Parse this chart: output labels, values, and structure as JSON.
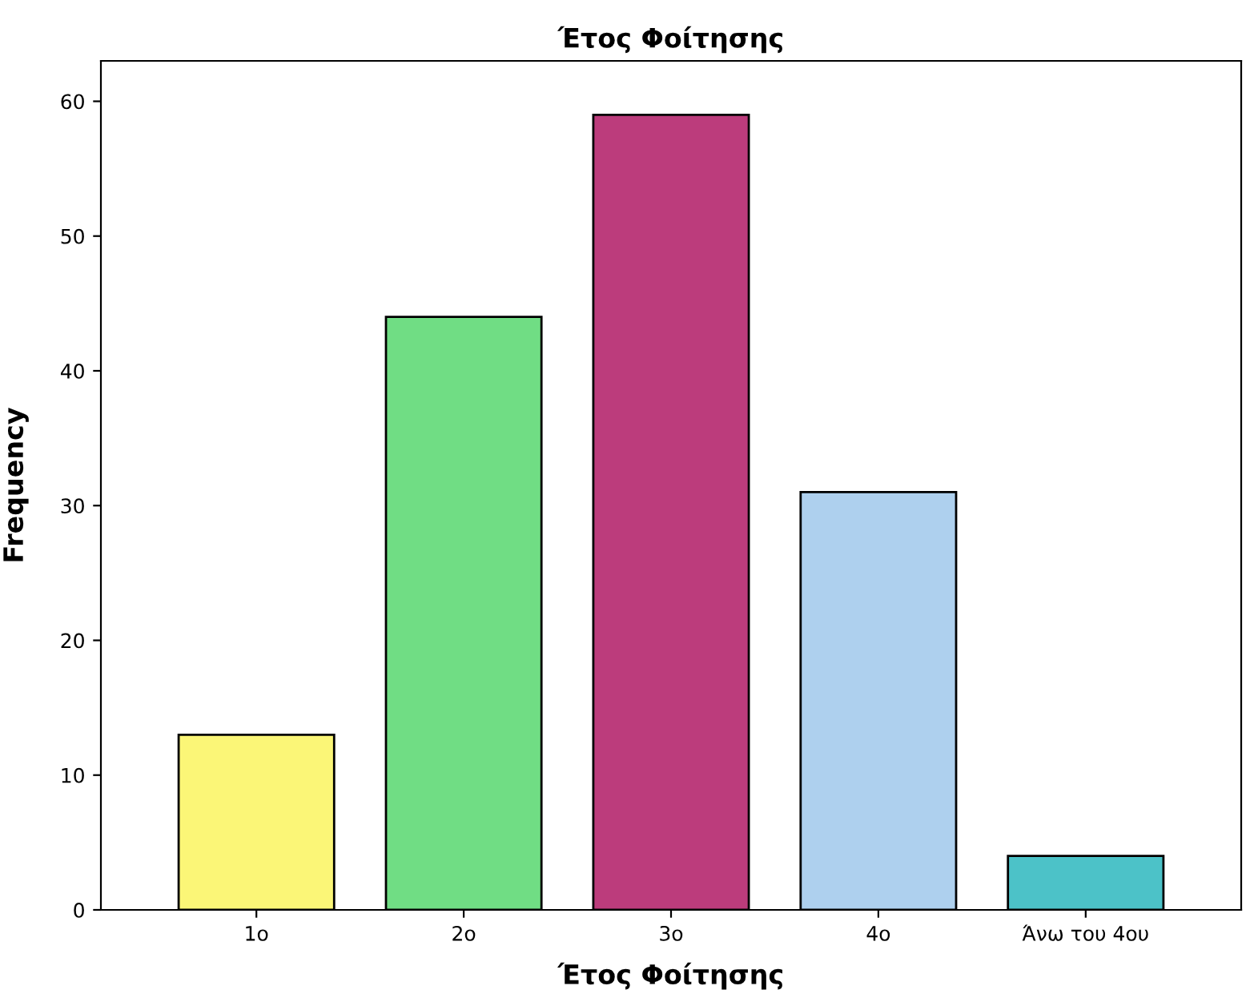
{
  "chart_data": {
    "type": "bar",
    "title": "Έτος Φοίτησης",
    "xlabel": "Έτος Φοίτησης",
    "ylabel": "Frequency",
    "categories": [
      "1ο",
      "2ο",
      "3ο",
      "4ο",
      "Άνω του 4ου"
    ],
    "values": [
      13,
      44,
      59,
      31,
      4
    ],
    "colors": [
      "#fbf677",
      "#70dd84",
      "#bc3c7c",
      "#aed0ee",
      "#4cc2c8"
    ],
    "ylim": [
      0,
      63
    ],
    "yticks": [
      0,
      10,
      20,
      30,
      40,
      50,
      60
    ],
    "grid": false,
    "legend": false
  }
}
